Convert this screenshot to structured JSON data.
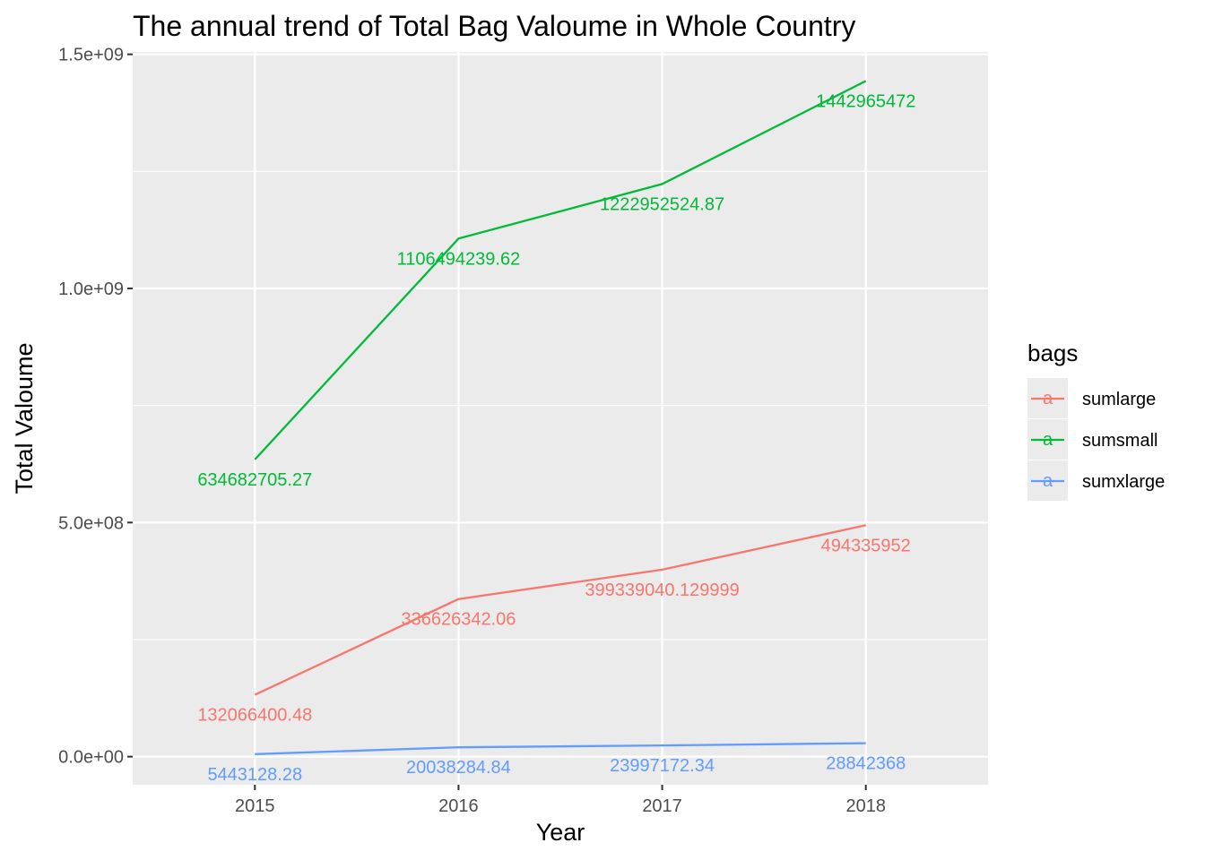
{
  "chart_data": {
    "type": "line",
    "title": "The annual trend of Total Bag Valoume in Whole Country",
    "xlabel": "Year",
    "ylabel": "Total Valoume",
    "x": [
      2015,
      2016,
      2017,
      2018
    ],
    "xlim": [
      2014.4,
      2018.6
    ],
    "ylim": [
      -60000000,
      1505000000
    ],
    "y_ticks": [
      0,
      500000000,
      1000000000,
      1500000000
    ],
    "y_tick_labels": [
      "0.0e+00",
      "5.0e+08",
      "1.0e+09",
      "1.5e+09"
    ],
    "x_tick_labels": [
      "2015",
      "2016",
      "2017",
      "2018"
    ],
    "grid": true,
    "legend": {
      "title": "bags",
      "position": "right",
      "key_glyph": "a"
    },
    "series": [
      {
        "name": "sumlarge",
        "color": "#F8766D",
        "values": [
          132066400.48,
          336626342.06,
          399339040.129999,
          494335952
        ],
        "labels": [
          "132066400.48",
          "336626342.06",
          "399339040.129999",
          "494335952"
        ]
      },
      {
        "name": "sumsmall",
        "color": "#00BA38",
        "values": [
          634682705.27,
          1106494239.62,
          1222952524.87,
          1442965472
        ],
        "labels": [
          "634682705.27",
          "1106494239.62",
          "1222952524.87",
          "1442965472"
        ]
      },
      {
        "name": "sumxlarge",
        "color": "#619CFF",
        "values": [
          5443128.28,
          20038284.84,
          23997172.34,
          28842368
        ],
        "labels": [
          "5443128.28",
          "20038284.84",
          "23997172.34",
          "28842368"
        ]
      }
    ]
  }
}
